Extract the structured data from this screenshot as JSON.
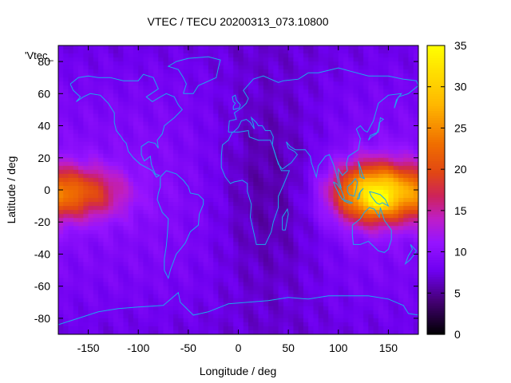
{
  "chart_data": {
    "type": "heatmap",
    "title": "VTEC / TECU 20200313_073.10800",
    "xlabel": "Longitude / deg",
    "ylabel": "Latitude / deg",
    "key_label": "'Vtec_",
    "xlim": [
      -180,
      180
    ],
    "ylim": [
      -90,
      90
    ],
    "zlim": [
      0,
      35
    ],
    "x_ticks": [
      -150,
      -100,
      -50,
      0,
      50,
      100,
      150
    ],
    "y_ticks": [
      -80,
      -60,
      -40,
      -20,
      0,
      20,
      40,
      60,
      80
    ],
    "colorbar_ticks": [
      0,
      5,
      10,
      15,
      20,
      25,
      30,
      35
    ],
    "colormap": "black-purple-red-orange-yellow",
    "coastline_color": "#1ca9ec",
    "grid_step_deg": [
      5,
      2.5
    ],
    "features": [
      {
        "name": "western-pacific-equatorial-crest",
        "lon": 135,
        "lat": -2,
        "lon_halfwidth": 40,
        "lat_halfwidth": 18,
        "peak": 22
      },
      {
        "name": "eastern-pacific-equatorial-crest",
        "lon": -160,
        "lat": -2,
        "lon_halfwidth": 45,
        "lat_halfwidth": 16,
        "peak": 11
      },
      {
        "name": "peak-near-new-guinea",
        "lon": 140,
        "lat": -6,
        "lon_halfwidth": 8,
        "lat_halfwidth": 5,
        "peak": 10
      },
      {
        "name": "night-side-low",
        "lon": 30,
        "lat": 0,
        "lon_halfwidth": 60,
        "lat_halfwidth": 70,
        "peak": -4
      }
    ]
  }
}
